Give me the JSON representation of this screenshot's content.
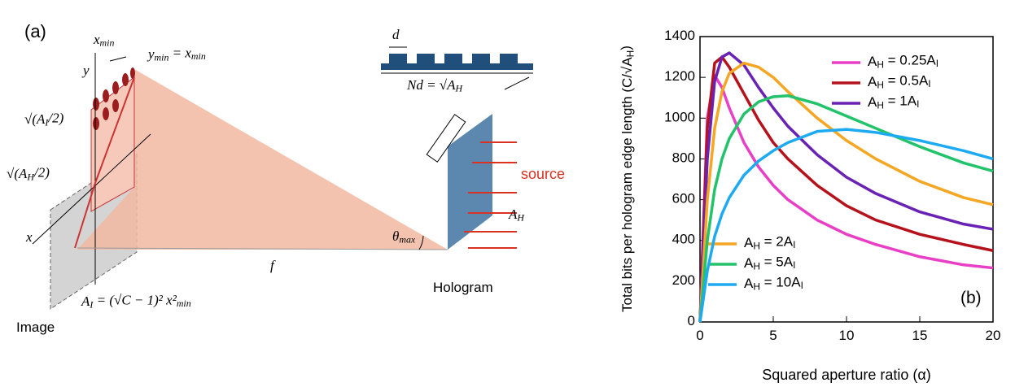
{
  "diagram": {
    "panel_label": "(a)",
    "x_min": "x_min",
    "y_min_eq": "y_min = x_min",
    "y_axis": "y",
    "x_axis": "x",
    "sqrt_ai": "√(A_I/2)",
    "sqrt_ah": "√(A_H/2)",
    "f": "f",
    "theta": "θ_max",
    "ai_formula": "A_I = (√C − 1)² x²_min",
    "image": "Image",
    "d": "d",
    "nd": "Nd = √A_H",
    "source": "source",
    "ah": "A_H",
    "hologram": "Hologram"
  },
  "chart_data": {
    "type": "line",
    "panel_label": "(b)",
    "xlabel": "Squared aperture ratio (α)",
    "ylabel": "Total bits per hologram edge length (C/√A_H)",
    "x": [
      0,
      0.5,
      1,
      1.5,
      2,
      3,
      4,
      5,
      6,
      8,
      10,
      12,
      15,
      18,
      20
    ],
    "series": [
      {
        "name": "A_H = 0.25A_I",
        "color": "#e83fc6",
        "values": [
          0,
          1000,
          1210,
          1150,
          1050,
          880,
          760,
          670,
          600,
          500,
          430,
          380,
          320,
          280,
          265
        ]
      },
      {
        "name": "A_H = 0.5A_I",
        "color": "#b5121b",
        "values": [
          0,
          950,
          1270,
          1300,
          1250,
          1120,
          990,
          880,
          800,
          670,
          570,
          500,
          430,
          380,
          350
        ]
      },
      {
        "name": "A_H = 1A_I",
        "color": "#6a22b4",
        "values": [
          0,
          800,
          1180,
          1300,
          1320,
          1260,
          1150,
          1050,
          960,
          820,
          710,
          630,
          540,
          480,
          455
        ]
      },
      {
        "name": "A_H = 2A_I",
        "color": "#f5a623",
        "values": [
          0,
          600,
          950,
          1130,
          1220,
          1270,
          1250,
          1200,
          1130,
          1000,
          890,
          800,
          690,
          610,
          575
        ]
      },
      {
        "name": "A_H = 5A_I",
        "color": "#22c36a",
        "values": [
          0,
          400,
          650,
          800,
          900,
          1020,
          1080,
          1105,
          1110,
          1070,
          1010,
          950,
          860,
          780,
          740
        ]
      },
      {
        "name": "A_H = 10A_I",
        "color": "#1eaaf0",
        "values": [
          0,
          250,
          420,
          530,
          610,
          720,
          790,
          840,
          880,
          935,
          945,
          930,
          890,
          840,
          800
        ]
      }
    ],
    "xlim": [
      0,
      20
    ],
    "xticks": [
      0,
      5,
      10,
      15,
      20
    ],
    "ylim": [
      0,
      1400
    ],
    "yticks": [
      0,
      200,
      400,
      600,
      800,
      1000,
      1200,
      1400
    ]
  }
}
